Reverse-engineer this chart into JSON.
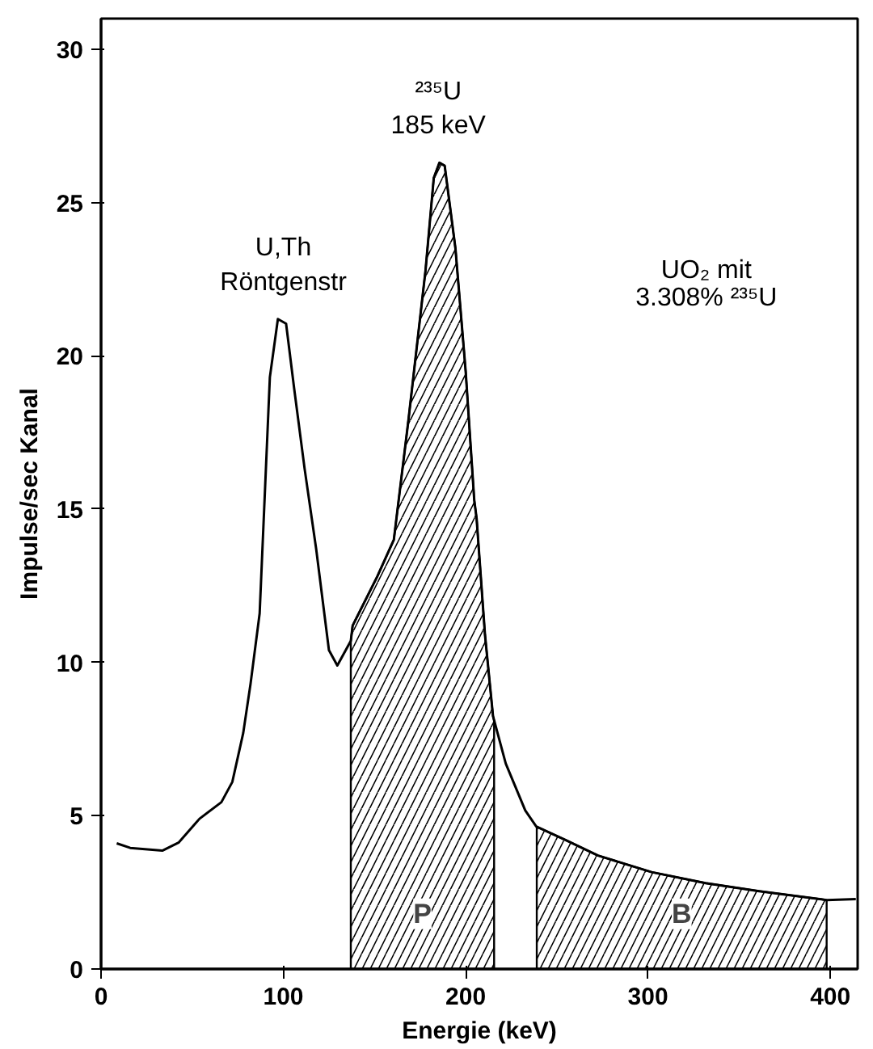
{
  "chart_data": {
    "type": "line",
    "xlabel": "Energie (keV)",
    "ylabel": "Impulse/sec Kanal",
    "xlim": [
      0,
      415
    ],
    "ylim": [
      0,
      31
    ],
    "xticks": [
      0,
      100,
      200,
      300,
      400
    ],
    "yticks": [
      0,
      5,
      10,
      15,
      20,
      25,
      30
    ],
    "grid": false,
    "series": [
      {
        "color": "#000000",
        "x": [
          8.6,
          16,
          33.6,
          42.5,
          54,
          66,
          72,
          78,
          82,
          87,
          92.6,
          97,
          101.5,
          106,
          111.7,
          118,
          125,
          129.6,
          137,
          138,
          151.5,
          160.6,
          168.6,
          178,
          182.5,
          185.6,
          188.5,
          194.4,
          200,
          204.7,
          206,
          210.6,
          215,
          222,
          232.7,
          238.7,
          255,
          272.6,
          302,
          331.6,
          361,
          398,
          414
        ],
        "values": [
          4.1,
          3.95,
          3.86,
          4.12,
          4.9,
          5.44,
          6.1,
          7.7,
          9.3,
          11.6,
          19.3,
          21.2,
          21.05,
          18.9,
          16.3,
          13.7,
          10.4,
          9.9,
          10.7,
          11.2,
          12.8,
          14.0,
          17.9,
          22.8,
          25.8,
          26.3,
          26.2,
          23.5,
          19.5,
          15.3,
          14.7,
          10.9,
          8.25,
          6.7,
          5.17,
          4.65,
          4.2,
          3.7,
          3.16,
          2.8,
          2.54,
          2.25,
          2.28
        ]
      },
      {
        "type": "area",
        "name": "P",
        "color": "#000000",
        "x": [
          137,
          138,
          151.5,
          160.6,
          168.6,
          178,
          182.5,
          185.6,
          188.5,
          194.4,
          200,
          204.7,
          206,
          210.6,
          215,
          215.6
        ],
        "values": [
          10.7,
          11.2,
          12.8,
          14.0,
          17.9,
          22.8,
          25.8,
          26.3,
          26.2,
          23.5,
          19.5,
          15.3,
          14.7,
          10.9,
          8.25,
          8.1
        ]
      },
      {
        "type": "area",
        "name": "B",
        "color": "#000000",
        "x": [
          239,
          255,
          272.6,
          302,
          331.6,
          361,
          398
        ],
        "values": [
          4.64,
          4.2,
          3.7,
          3.16,
          2.8,
          2.54,
          2.25
        ]
      }
    ],
    "annotations": [
      {
        "text": "U,Th\nRöntgenstr",
        "x": 100,
        "y": 21.2
      },
      {
        "text": "²³⁵U\n185 keV",
        "x": 185,
        "y": 26.3
      },
      "UO₂ mit\n3.308% ²³⁵U"
    ]
  }
}
